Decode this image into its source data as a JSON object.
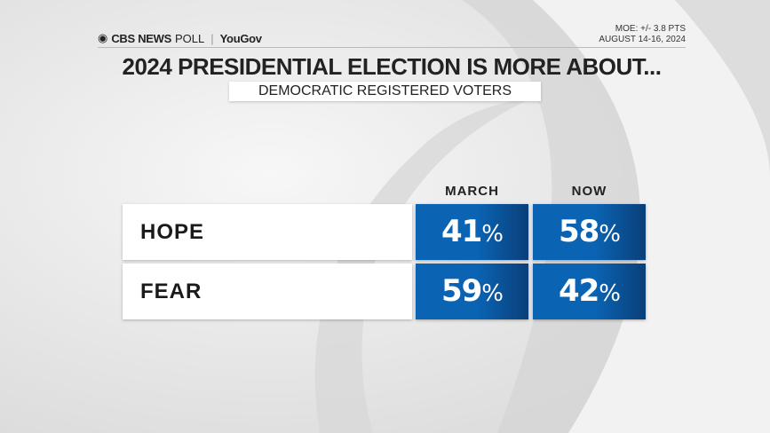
{
  "header": {
    "brand": "CBS NEWS",
    "poll": "POLL",
    "partner": "YouGov",
    "moe": "MOE: +/- 3.8 PTS",
    "dates": "AUGUST 14-16, 2024"
  },
  "title": "2024 PRESIDENTIAL ELECTION IS MORE ABOUT...",
  "subtitle": "DEMOCRATIC REGISTERED VOTERS",
  "chart_data": {
    "type": "table",
    "title": "2024 PRESIDENTIAL ELECTION IS MORE ABOUT...",
    "subtitle": "DEMOCRATIC REGISTERED VOTERS",
    "columns": [
      "MARCH",
      "NOW"
    ],
    "rows": [
      {
        "label": "HOPE",
        "values": [
          "41",
          "58"
        ]
      },
      {
        "label": "FEAR",
        "values": [
          "59",
          "42"
        ]
      }
    ],
    "unit": "%",
    "colors": {
      "cell": "#0a63b3",
      "cell_dark": "#0a3f7a",
      "label_bg": "#ffffff"
    }
  }
}
